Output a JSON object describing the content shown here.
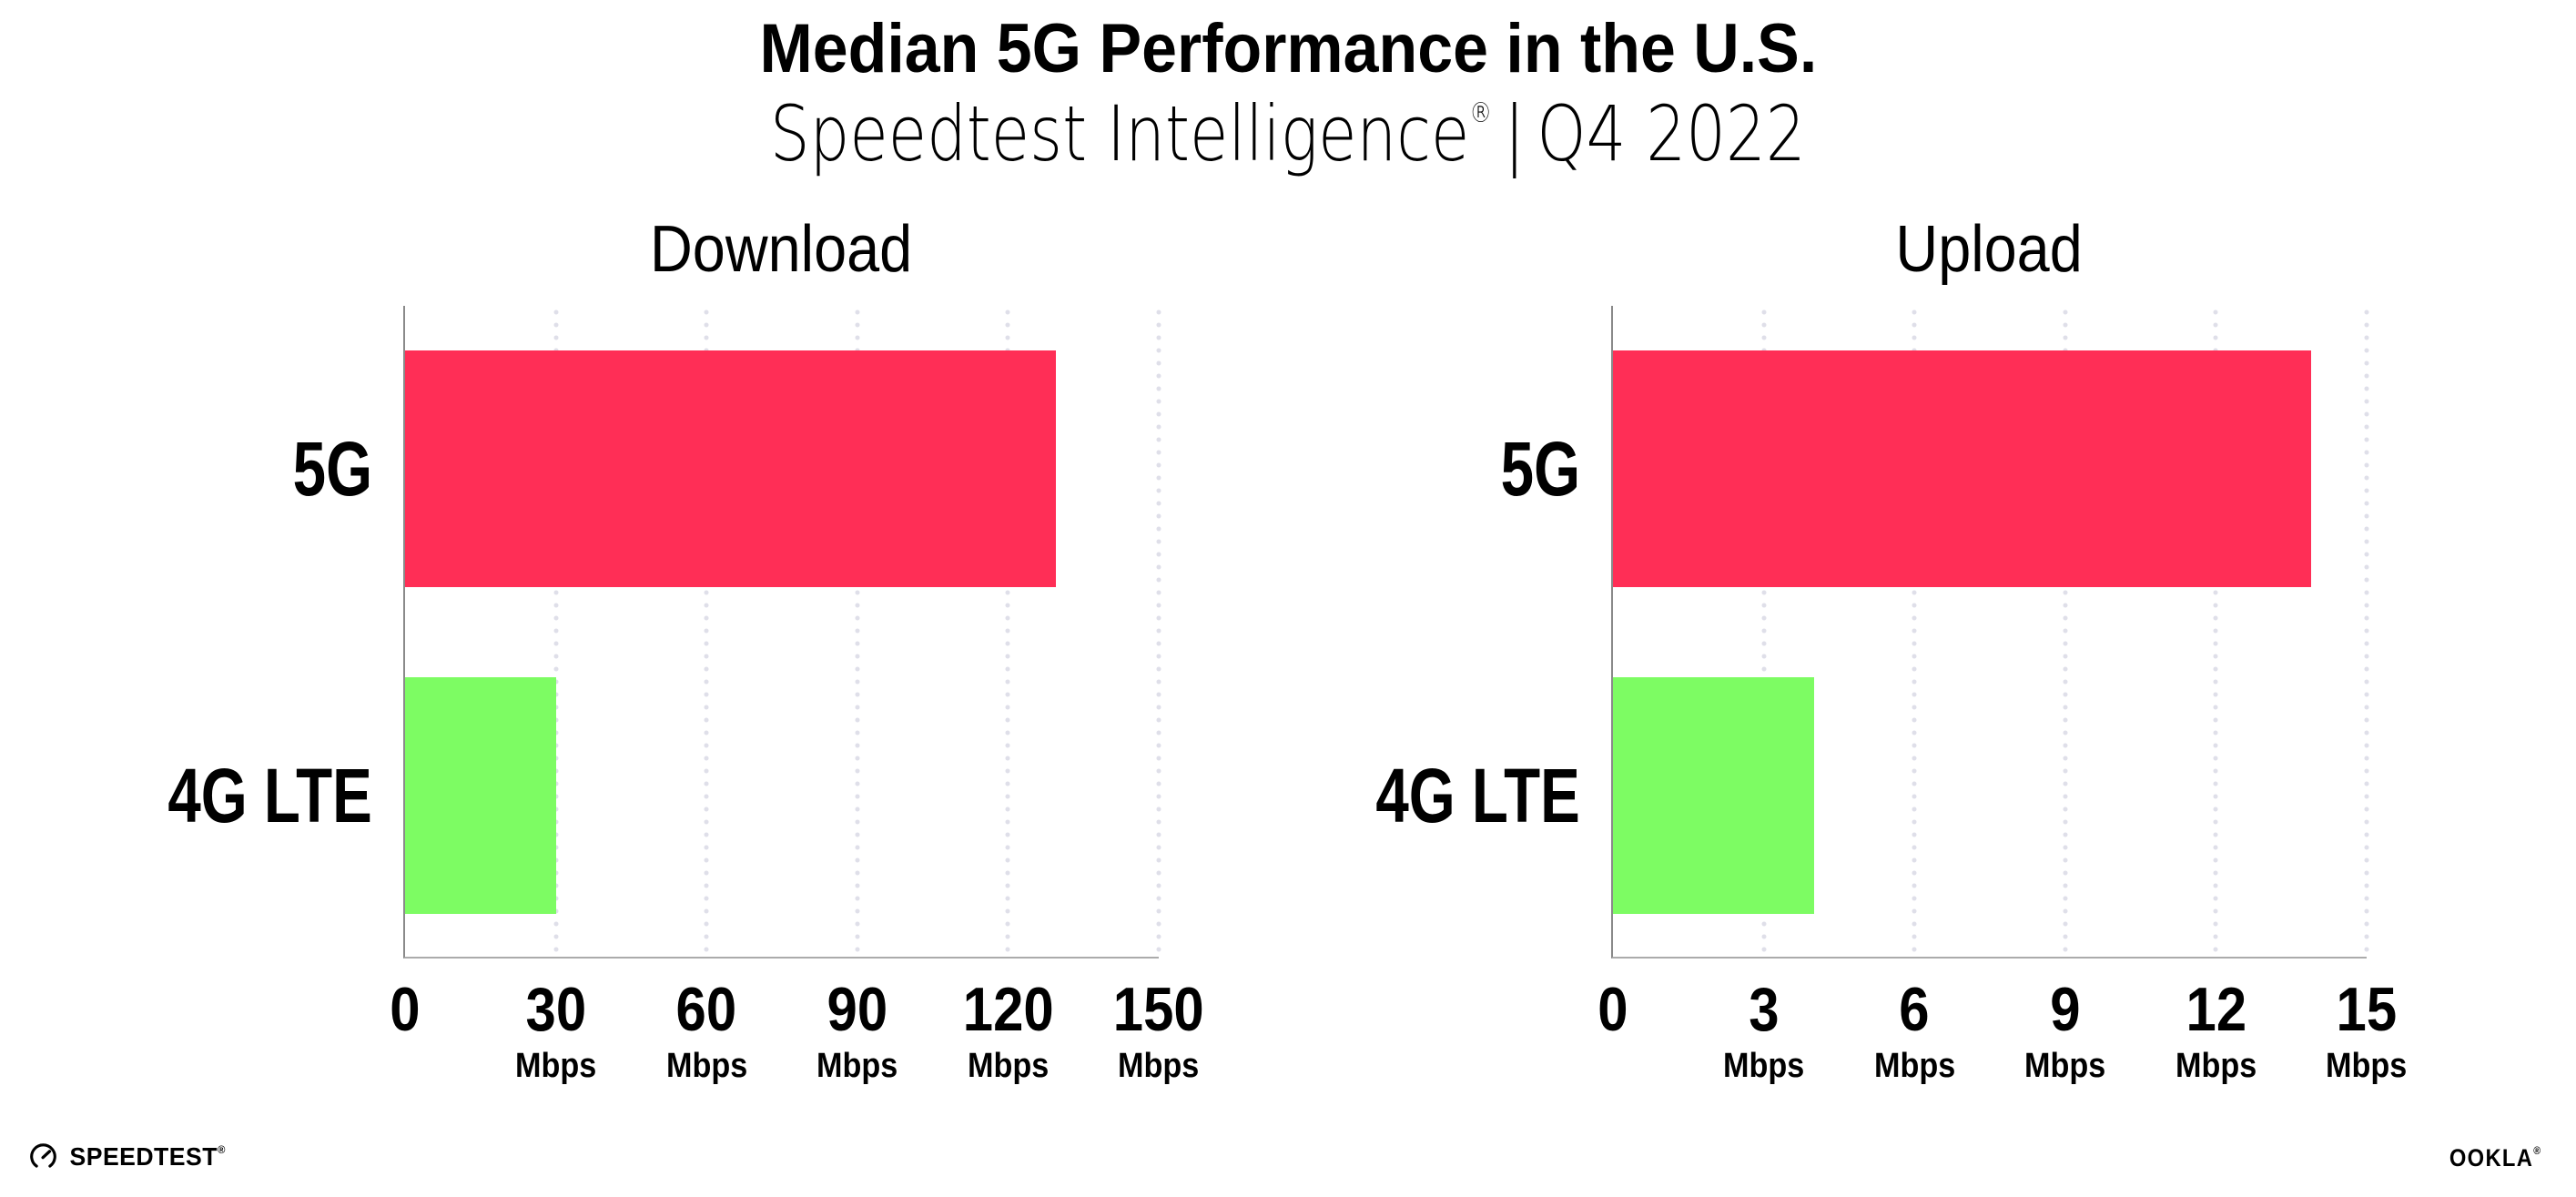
{
  "header": {
    "title": "Median 5G Performance in the U.S.",
    "subtitle_product": "Speedtest Intelligence",
    "subtitle_reg": "®",
    "subtitle_sep": "|",
    "subtitle_period": "Q4 2022"
  },
  "chart_data": [
    {
      "type": "bar",
      "orientation": "horizontal",
      "title": "Download",
      "categories": [
        "5G",
        "4G LTE"
      ],
      "values": [
        129.5,
        30
      ],
      "unit": "Mbps",
      "xlim": [
        0,
        150
      ],
      "xticks": [
        0,
        30,
        60,
        90,
        120,
        150
      ],
      "bar_colors": [
        "#ff2e56",
        "#7dfc63"
      ],
      "grid": "vertical-dotted",
      "legend": "none"
    },
    {
      "type": "bar",
      "orientation": "horizontal",
      "title": "Upload",
      "categories": [
        "5G",
        "4G LTE"
      ],
      "values": [
        13.9,
        4
      ],
      "unit": "Mbps",
      "xlim": [
        0,
        15
      ],
      "xticks": [
        0,
        3,
        6,
        9,
        12,
        15
      ],
      "bar_colors": [
        "#ff2e56",
        "#7dfc63"
      ],
      "grid": "vertical-dotted",
      "legend": "none"
    }
  ],
  "colors": {
    "bar_5g": "#ff2e56",
    "bar_4g_lte": "#7dfc63",
    "gridline": "#dfdfe9",
    "axis": "#8a8a8a",
    "text": "#000000"
  },
  "footer": {
    "speedtest_text": "SPEEDTEST",
    "speedtest_reg": "®",
    "ookla_text": "OOKLA",
    "ookla_reg": "®"
  }
}
